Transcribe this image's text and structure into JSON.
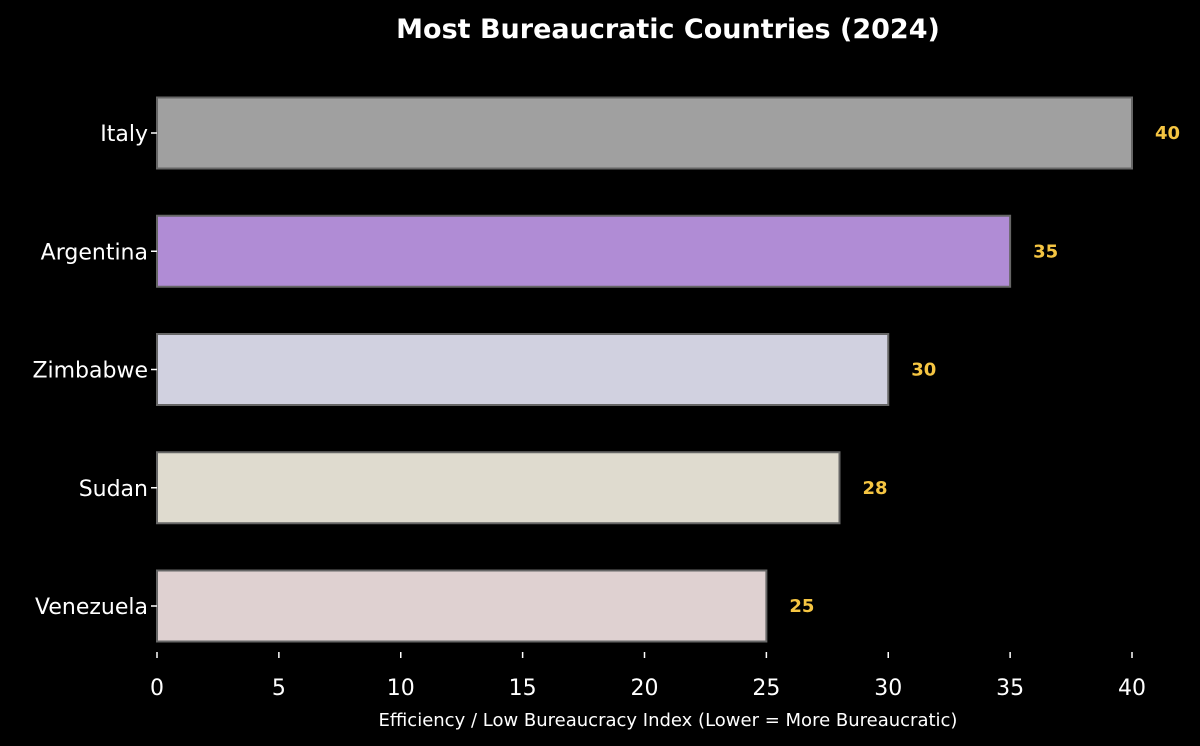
{
  "chart_data": {
    "type": "bar",
    "orientation": "horizontal",
    "title": "Most Bureaucratic Countries (2024)",
    "xlabel": "Efficiency / Low Bureaucracy Index (Lower = More Bureaucratic)",
    "ylabel": "",
    "categories": [
      "Italy",
      "Argentina",
      "Zimbabwe",
      "Sudan",
      "Venezuela"
    ],
    "values": [
      40,
      35,
      30,
      28,
      25
    ],
    "xlim": [
      0,
      40
    ],
    "xticks": [
      0,
      5,
      10,
      15,
      20,
      25,
      30,
      35,
      40
    ],
    "grid": false,
    "bar_colors": [
      "#a0a0a0",
      "#b08cd5",
      "#d1d1e0",
      "#dfdbcf",
      "#dfd1d1"
    ],
    "bar_edge_color": "#666666",
    "value_label_color": "#f5c542",
    "background": "#000000",
    "text_color": "#ffffff"
  }
}
